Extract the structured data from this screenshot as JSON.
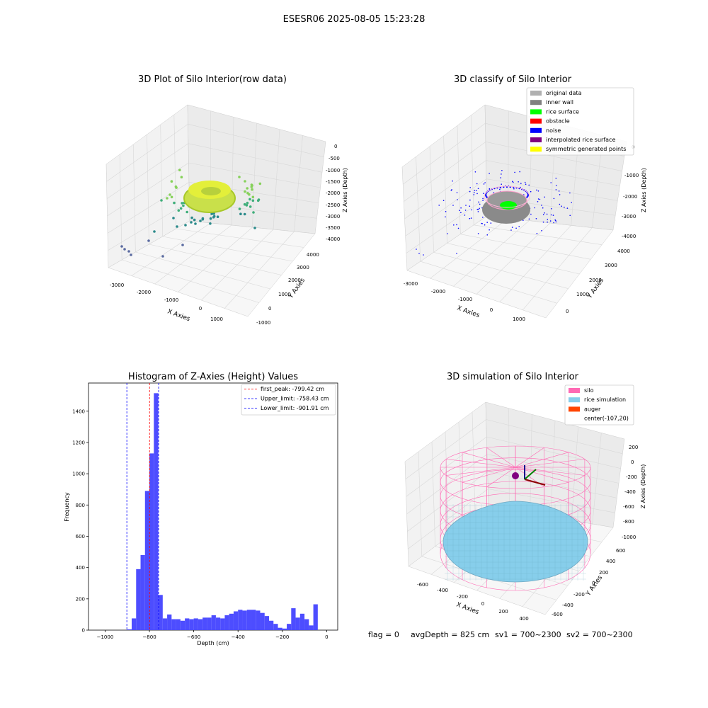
{
  "figure": {
    "suptitle": "ESESR06 2025-08-05 15:23:28",
    "footer": {
      "flag": "flag = 0",
      "avg": "avgDepth = 825 cm",
      "sv1": "sv1 = 700~2300",
      "sv2": "sv2 = 700~2300"
    }
  },
  "panels": {
    "raw": {
      "title": "3D Plot of Silo Interior(row data)",
      "xlabel": "X Axies",
      "ylabel": "Y Axies",
      "zlabel": "Z Axies (Depth)",
      "xticks": [
        "-3000",
        "-2000",
        "-1000",
        "0",
        "1000"
      ],
      "yticks": [
        "-1000",
        "0",
        "1000",
        "2000",
        "3000",
        "4000"
      ],
      "zticks": [
        "0",
        "-500",
        "-1000",
        "-1500",
        "-2000",
        "-2500",
        "-3000",
        "-3500",
        "-4000"
      ]
    },
    "classify": {
      "title": "3D classify of Silo Interior",
      "xlabel": "X Axies",
      "ylabel": "Y Axies",
      "zlabel": "Z Axies (Depth)",
      "xticks": [
        "-3000",
        "-2000",
        "-1000",
        "0",
        "1000"
      ],
      "yticks": [
        "0",
        "1000",
        "2000",
        "3000",
        "4000"
      ],
      "zticks": [
        "0",
        "-1000",
        "-2000",
        "-3000",
        "-4000"
      ],
      "legend": [
        {
          "label": "original data",
          "color": "#b0b0b0"
        },
        {
          "label": "inner wall",
          "color": "#808080"
        },
        {
          "label": "rice surface",
          "color": "#00ff00"
        },
        {
          "label": "obstacle",
          "color": "#ff0000"
        },
        {
          "label": "noise",
          "color": "#0000ff"
        },
        {
          "label": "interpolated rice surface",
          "color": "#800080"
        },
        {
          "label": "symmetric generated points",
          "color": "#ffff00"
        }
      ]
    },
    "simulation": {
      "title": "3D simulation of Silo Interior",
      "xlabel": "X Axies",
      "ylabel": "Y Axies",
      "zlabel": "Z Axies (Depth)",
      "xticks": [
        "-600",
        "-400",
        "-200",
        "0",
        "200",
        "400"
      ],
      "yticks": [
        "-600",
        "-400",
        "-200",
        "0",
        "200",
        "400",
        "600"
      ],
      "zticks": [
        "200",
        "0",
        "-200",
        "-400",
        "-600",
        "-800",
        "-1000"
      ],
      "legend": [
        {
          "label": "silo",
          "color": "#ff69b4"
        },
        {
          "label": "rice simulation",
          "color": "#87ceeb"
        },
        {
          "label": "auger",
          "color": "#ff4500"
        },
        {
          "label": "center(-107,20)",
          "color": ""
        }
      ]
    }
  },
  "chart_data": {
    "type": "bar",
    "title": "Histogram of Z-Axies (Height) Values",
    "xlabel": "Depth (cm)",
    "ylabel": "Frequency",
    "xlim": [
      -1075,
      50
    ],
    "ylim": [
      0,
      1580
    ],
    "xticks": [
      -1000,
      -800,
      -600,
      -400,
      -200,
      0
    ],
    "yticks": [
      0,
      200,
      400,
      600,
      800,
      1000,
      1200,
      1400
    ],
    "bin_width": 20,
    "bins": [
      {
        "x": -900,
        "count": 5
      },
      {
        "x": -880,
        "count": 75
      },
      {
        "x": -860,
        "count": 390
      },
      {
        "x": -840,
        "count": 480
      },
      {
        "x": -820,
        "count": 890
      },
      {
        "x": -800,
        "count": 1130
      },
      {
        "x": -780,
        "count": 1515
      },
      {
        "x": -760,
        "count": 225
      },
      {
        "x": -740,
        "count": 75
      },
      {
        "x": -720,
        "count": 100
      },
      {
        "x": -700,
        "count": 70
      },
      {
        "x": -680,
        "count": 70
      },
      {
        "x": -660,
        "count": 60
      },
      {
        "x": -640,
        "count": 75
      },
      {
        "x": -620,
        "count": 70
      },
      {
        "x": -600,
        "count": 75
      },
      {
        "x": -580,
        "count": 70
      },
      {
        "x": -560,
        "count": 80
      },
      {
        "x": -540,
        "count": 80
      },
      {
        "x": -520,
        "count": 95
      },
      {
        "x": -500,
        "count": 80
      },
      {
        "x": -480,
        "count": 75
      },
      {
        "x": -460,
        "count": 95
      },
      {
        "x": -440,
        "count": 105
      },
      {
        "x": -420,
        "count": 120
      },
      {
        "x": -400,
        "count": 130
      },
      {
        "x": -380,
        "count": 125
      },
      {
        "x": -360,
        "count": 130
      },
      {
        "x": -340,
        "count": 130
      },
      {
        "x": -320,
        "count": 125
      },
      {
        "x": -300,
        "count": 110
      },
      {
        "x": -280,
        "count": 90
      },
      {
        "x": -260,
        "count": 60
      },
      {
        "x": -240,
        "count": 40
      },
      {
        "x": -220,
        "count": 15
      },
      {
        "x": -200,
        "count": 10
      },
      {
        "x": -180,
        "count": 40
      },
      {
        "x": -160,
        "count": 140
      },
      {
        "x": -140,
        "count": 80
      },
      {
        "x": -120,
        "count": 105
      },
      {
        "x": -100,
        "count": 70
      },
      {
        "x": -80,
        "count": 30
      },
      {
        "x": -60,
        "count": 165
      }
    ],
    "bar_color": "#4d4dff",
    "vlines": [
      {
        "name": "first_peak: -799.42 cm",
        "x": -799.42,
        "color": "#ff0000"
      },
      {
        "name": "Upper_limit: -758.43 cm",
        "x": -758.43,
        "color": "#0000ff"
      },
      {
        "name": "Lower_limit: -901.91 cm",
        "x": -901.91,
        "color": "#0000ff"
      }
    ],
    "legend_position": "top-right"
  }
}
